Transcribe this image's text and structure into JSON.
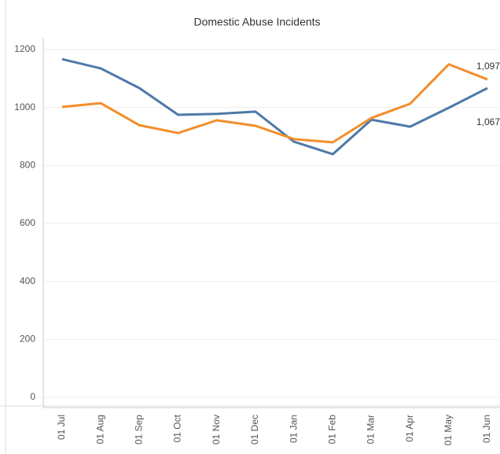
{
  "chart_data": {
    "type": "line",
    "title": "Domestic Abuse Incidents",
    "categories": [
      "01 Jul",
      "01 Aug",
      "01 Sep",
      "01 Oct",
      "01 Nov",
      "01 Dec",
      "01 Jan",
      "01 Feb",
      "01 Mar",
      "01 Apr",
      "01 May",
      "01 Jun"
    ],
    "series": [
      {
        "color": "#4e79a7",
        "values": [
          1167,
          1135,
          1067,
          975,
          978,
          986,
          882,
          839,
          958,
          934,
          999,
          1067
        ],
        "value_labels": [
          null,
          null,
          null,
          null,
          null,
          null,
          null,
          null,
          null,
          null,
          null,
          "1,067"
        ]
      },
      {
        "color": "#f28e2b",
        "values": [
          1002,
          1015,
          939,
          912,
          956,
          937,
          891,
          880,
          964,
          1013,
          1149,
          1097
        ],
        "value_labels": [
          null,
          null,
          null,
          null,
          null,
          null,
          null,
          null,
          null,
          null,
          null,
          "1,097"
        ]
      }
    ],
    "ylim": [
      0,
      1200
    ],
    "yticks": [
      0,
      200,
      400,
      600,
      800,
      1000,
      1200
    ],
    "grid": true
  }
}
